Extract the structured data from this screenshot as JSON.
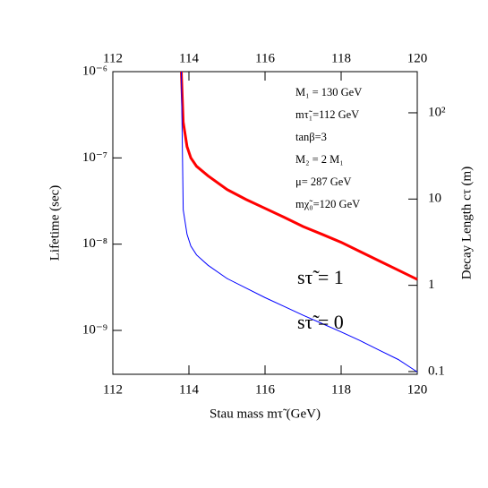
{
  "chart_data": {
    "type": "line",
    "xlabel": "Stau mass mτ̃ (GeV)",
    "ylabel": "Lifetime (sec)",
    "y2label": "Decay Length cτ (m)",
    "x": [
      113.8,
      113.85,
      113.95,
      114.05,
      114.2,
      114.5,
      115,
      115.5,
      116,
      116.5,
      117,
      117.5,
      118,
      118.5,
      119,
      119.5,
      120
    ],
    "series": [
      {
        "name": "sτ̃ = 1",
        "color": "#ff0000",
        "values": [
          1e-06,
          2.6e-07,
          1.35e-07,
          1e-07,
          8e-08,
          6.2e-08,
          4.3e-08,
          3.3e-08,
          2.6e-08,
          2.05e-08,
          1.6e-08,
          1.3e-08,
          1.05e-08,
          8.2e-09,
          6.4e-09,
          5e-09,
          3.9e-09
        ]
      },
      {
        "name": "sτ̃ = 0",
        "color": "#0000ff",
        "values": [
          1e-06,
          2.5e-08,
          1.3e-08,
          9.5e-09,
          7.5e-09,
          5.7e-09,
          4e-09,
          3.1e-09,
          2.4e-09,
          1.9e-09,
          1.5e-09,
          1.2e-09,
          9.6e-10,
          7.6e-10,
          5.9e-10,
          4.6e-10,
          3.3e-10
        ]
      }
    ],
    "xlim": [
      112,
      120
    ],
    "xticks": [
      112,
      114,
      116,
      118,
      120
    ],
    "ylim": [
      3.1e-10,
      1e-06
    ],
    "ylog": true,
    "yticks": [
      {
        "value": 1e-09,
        "label": "10⁻⁹"
      },
      {
        "value": 1e-08,
        "label": "10⁻⁸"
      },
      {
        "value": 1e-07,
        "label": "10⁻⁷"
      },
      {
        "value": 1e-06,
        "label": "10⁻⁶"
      }
    ],
    "y2lim": [
      0.093,
      300
    ],
    "y2ticks": [
      0.1,
      1,
      10,
      {
        "value": 100,
        "label": "10²"
      }
    ],
    "annotations": [
      "M₁ = 130 GeV",
      "mτ̃₁=112 GeV",
      "tanβ=3",
      "M₂ = 2 M₁",
      "μ= 287 GeV",
      "mχ̃₀=120 GeV"
    ]
  }
}
